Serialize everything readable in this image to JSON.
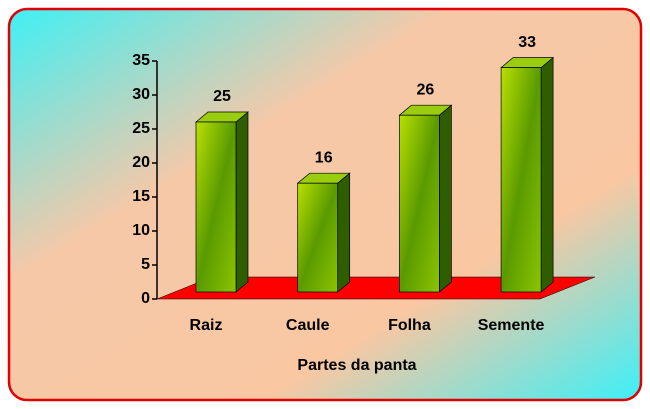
{
  "chart_data": {
    "type": "bar3d",
    "categories": [
      "Raiz",
      "Caule",
      "Folha",
      "Semente"
    ],
    "values": [
      25,
      16,
      26,
      33
    ],
    "x_label": "Partes da panta",
    "color": "#6aa800",
    "floor_color": "#ff0000",
    "ylim": [
      0,
      35
    ],
    "yticks": [
      0,
      5,
      10,
      15,
      20,
      25,
      30,
      35
    ]
  }
}
